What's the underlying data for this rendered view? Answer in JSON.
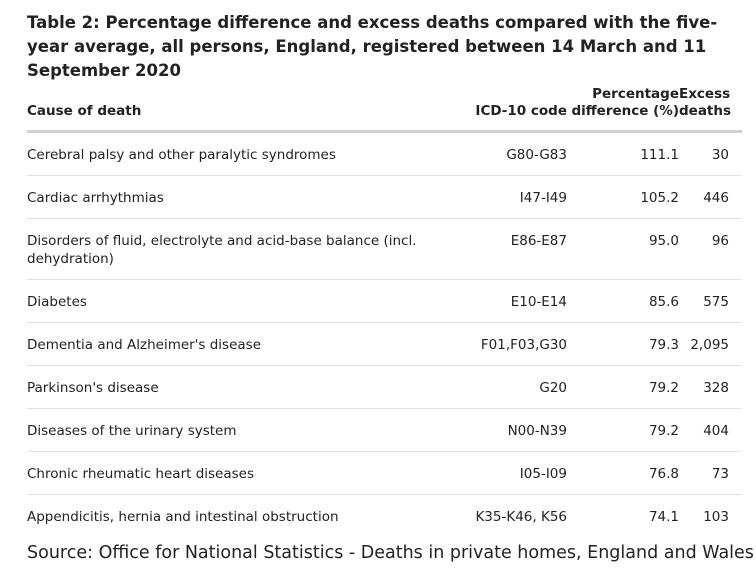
{
  "title": "Table 2: Percentage difference and excess deaths compared with the five-year average, all persons, England, registered between 14 March and 11 September 2020",
  "table": {
    "headers": {
      "cause": "Cause of death",
      "code": "ICD-10 code",
      "pct": "Percentage difference (%)",
      "excess": "Excess deaths"
    },
    "rows": [
      {
        "cause": "Cerebral palsy and other paralytic syndromes",
        "code": "G80-G83",
        "pct": "111.1",
        "excess": "30"
      },
      {
        "cause": "Cardiac arrhythmias",
        "code": "I47-I49",
        "pct": "105.2",
        "excess": "446"
      },
      {
        "cause": "Disorders of fluid, electrolyte and acid-base balance (incl. dehydration)",
        "code": "E86-E87",
        "pct": "95.0",
        "excess": "96"
      },
      {
        "cause": "Diabetes",
        "code": "E10-E14",
        "pct": "85.6",
        "excess": "575"
      },
      {
        "cause": "Dementia and Alzheimer's disease",
        "code": "F01,F03,G30",
        "pct": "79.3",
        "excess": "2,095"
      },
      {
        "cause": "Parkinson's disease",
        "code": "G20",
        "pct": "79.2",
        "excess": "328"
      },
      {
        "cause": "Diseases of the urinary system",
        "code": "N00-N39",
        "pct": "79.2",
        "excess": "404"
      },
      {
        "cause": "Chronic rheumatic heart diseases",
        "code": "I05-I09",
        "pct": "76.8",
        "excess": "73"
      },
      {
        "cause": "Appendicitis, hernia and intestinal obstruction",
        "code": "K35-K46, K56",
        "pct": "74.1",
        "excess": "103"
      }
    ]
  },
  "source": "Source: Office for National Statistics - Deaths in private homes, England and Wales"
}
